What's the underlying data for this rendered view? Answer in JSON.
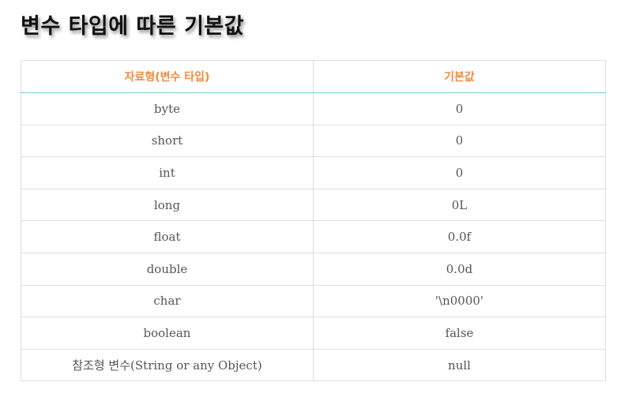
{
  "title": "변수 타입에 따른 기본값",
  "table": {
    "headers": [
      "자료형(변수 타입)",
      "기본값"
    ],
    "rows": [
      [
        "byte",
        "0"
      ],
      [
        "short",
        "0"
      ],
      [
        "int",
        "0"
      ],
      [
        "long",
        "0L"
      ],
      [
        "float",
        "0.0f"
      ],
      [
        "double",
        "0.0d"
      ],
      [
        "char",
        "'\\n0000'"
      ],
      [
        "boolean",
        "false"
      ],
      [
        "참조형 변수(String or any Object)",
        "null"
      ]
    ]
  },
  "colors": {
    "header_text": "#f08c3c",
    "header_rule": "#7fc8d8",
    "cell_text": "#555555",
    "border": "#dedede"
  }
}
